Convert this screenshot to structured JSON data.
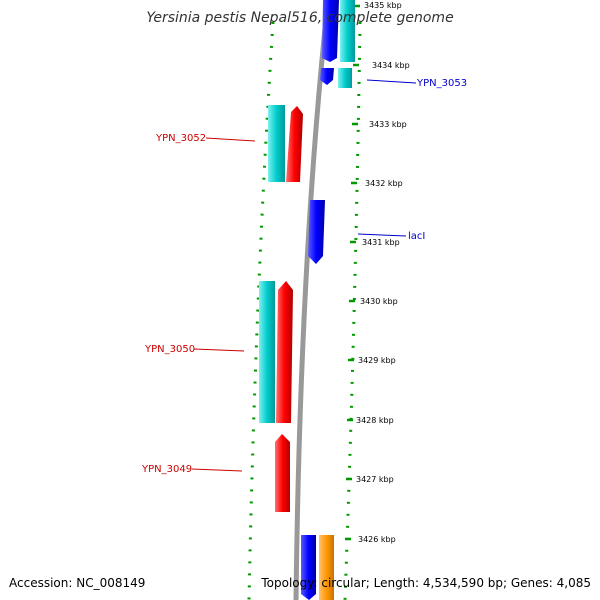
{
  "title": "Yersinia pestis Nepal516, complete genome",
  "accession": "Accession: NC_008149",
  "topology": "Topology: circular; Length: 4,534,590 bp; Genes: 4,085",
  "ticks": [
    "3435 kbp",
    "3434 kbp",
    "3433 kbp",
    "3432 kbp",
    "3431 kbp",
    "3430 kbp",
    "3429 kbp",
    "3428 kbp",
    "3427 kbp",
    "3426 kbp"
  ],
  "gene_labels": [
    {
      "text": "YPN_3053",
      "color": "#0000cc"
    },
    {
      "text": "YPN_3052",
      "color": "#cc0000"
    },
    {
      "text": "lacI",
      "color": "#0000cc"
    },
    {
      "text": "YPN_3050",
      "color": "#cc0000"
    },
    {
      "text": "YPN_3049",
      "color": "#cc0000"
    }
  ],
  "colors": {
    "forward": "#ff0000",
    "reverse": "#0000ff",
    "cds_plus": "#00cccc",
    "cds_other": "#ff9900",
    "backbone": "#999999",
    "tick_marks": "#009900"
  }
}
